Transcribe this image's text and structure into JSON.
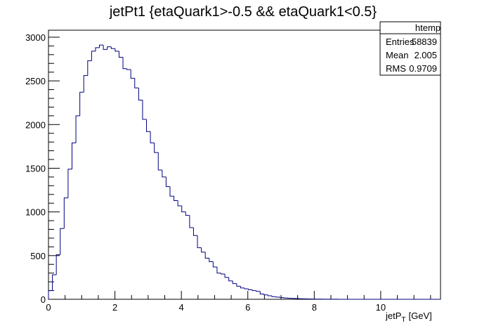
{
  "chart_data": {
    "type": "bar",
    "title": "jetPt1 {etaQuark1>-0.5 && etaQuark1<0.5}",
    "xlabel_main": "jetP",
    "xlabel_sub": "T",
    "xlabel_unit": "[GeV]",
    "ylabel": "",
    "xlim": [
      0,
      11.8
    ],
    "ylim": [
      0,
      3080
    ],
    "xticks": [
      0,
      2,
      4,
      6,
      8,
      10
    ],
    "yticks": [
      0,
      500,
      1000,
      1500,
      2000,
      2500,
      3000
    ],
    "grid": false,
    "line_color": "#000080",
    "bin_width": 0.118,
    "values": [
      100,
      280,
      510,
      810,
      1160,
      1490,
      1790,
      2100,
      2370,
      2560,
      2730,
      2840,
      2880,
      2910,
      2860,
      2890,
      2870,
      2840,
      2770,
      2640,
      2630,
      2530,
      2420,
      2280,
      2060,
      1920,
      1790,
      1680,
      1480,
      1400,
      1290,
      1180,
      1130,
      1070,
      1000,
      960,
      820,
      730,
      590,
      540,
      470,
      430,
      370,
      300,
      290,
      250,
      210,
      180,
      150,
      130,
      120,
      110,
      100,
      90,
      60,
      50,
      40,
      30,
      25,
      20,
      15,
      12,
      10,
      8,
      6,
      5,
      4,
      3,
      2,
      2,
      1,
      1,
      1,
      1,
      0,
      0,
      0,
      0,
      0,
      0,
      0,
      0,
      0,
      0,
      0,
      0,
      0,
      0,
      0,
      0,
      0,
      0,
      0,
      0,
      0,
      0,
      0,
      0,
      0,
      0
    ],
    "legend": {
      "name": "htemp",
      "entries_label": "Entries",
      "entries_value": "58839",
      "mean_label": "Mean",
      "mean_value": "2.005",
      "rms_label": "RMS",
      "rms_value": "0.9709"
    }
  }
}
